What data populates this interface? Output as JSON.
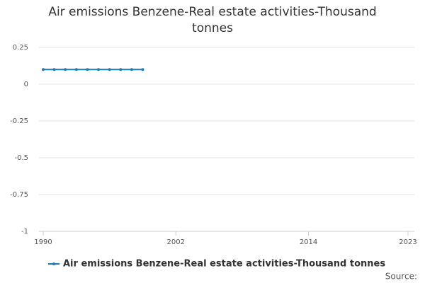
{
  "chart_data": {
    "type": "line",
    "title": "Air emissions Benzene-Real estate activities-Thousand tonnes",
    "x": [
      1990,
      1991,
      1992,
      1993,
      1994,
      1995,
      1996,
      1997,
      1998,
      1999
    ],
    "series": [
      {
        "name": "Air emissions Benzene-Real estate activities-Thousand tonnes",
        "color": "#1f7bb6",
        "values": [
          0.1,
          0.1,
          0.1,
          0.1,
          0.1,
          0.1,
          0.1,
          0.1,
          0.1,
          0.1
        ]
      }
    ],
    "xlim": [
      1990,
      2023
    ],
    "xticks": [
      1990,
      2002,
      2014,
      2023
    ],
    "ylim": [
      -1,
      0.25
    ],
    "yticks": [
      0.25,
      0,
      -0.25,
      -0.5,
      -0.75,
      -1
    ],
    "grid": true,
    "legend": "bottom",
    "source": "Source:"
  }
}
